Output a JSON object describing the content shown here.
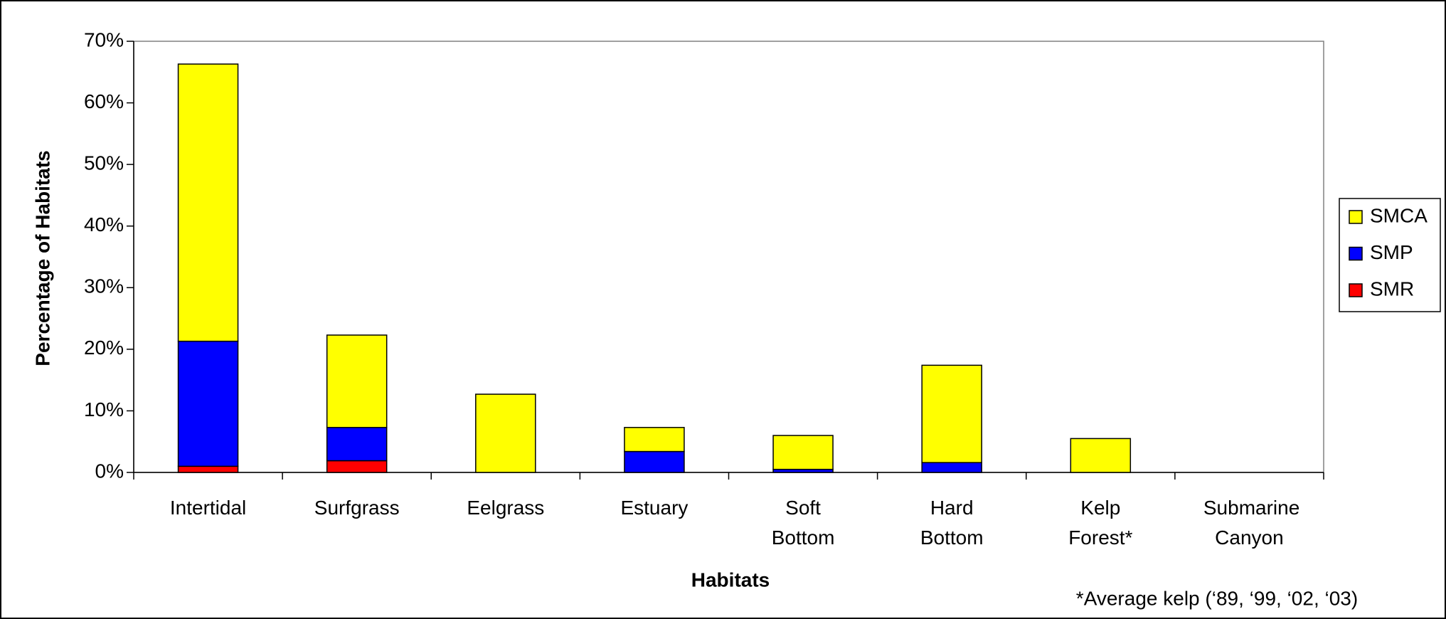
{
  "chart_data": {
    "type": "stacked_bar",
    "categories": [
      "Intertidal",
      "Surfgrass",
      "Eelgrass",
      "Estuary",
      "Soft Bottom",
      "Hard Bottom",
      "Kelp Forest*",
      "Submarine Canyon"
    ],
    "series": [
      {
        "name": "SMR",
        "color": "#ff0000",
        "values": [
          1.0,
          1.9,
          0,
          0,
          0,
          0,
          0,
          0
        ]
      },
      {
        "name": "SMP",
        "color": "#0000ff",
        "values": [
          20.3,
          5.4,
          0,
          3.4,
          0.5,
          1.6,
          0,
          0
        ]
      },
      {
        "name": "SMCA",
        "color": "#ffff00",
        "values": [
          45.0,
          15.0,
          12.7,
          3.9,
          5.5,
          15.8,
          5.5,
          0
        ]
      }
    ],
    "ylim": [
      0,
      70
    ],
    "yticks": [
      {
        "value": 0,
        "label": "0%"
      },
      {
        "value": 10,
        "label": "10%"
      },
      {
        "value": 20,
        "label": "20%"
      },
      {
        "value": 30,
        "label": "30%"
      },
      {
        "value": 40,
        "label": "40%"
      },
      {
        "value": 50,
        "label": "50%"
      },
      {
        "value": 60,
        "label": "60%"
      },
      {
        "value": 70,
        "label": "70%"
      }
    ],
    "y_label": "Percentage of Habitats",
    "x_label": "Habitats",
    "annotation": "*Average kelp (‘89, ‘99, ‘02, ‘03)",
    "legend": "right"
  }
}
